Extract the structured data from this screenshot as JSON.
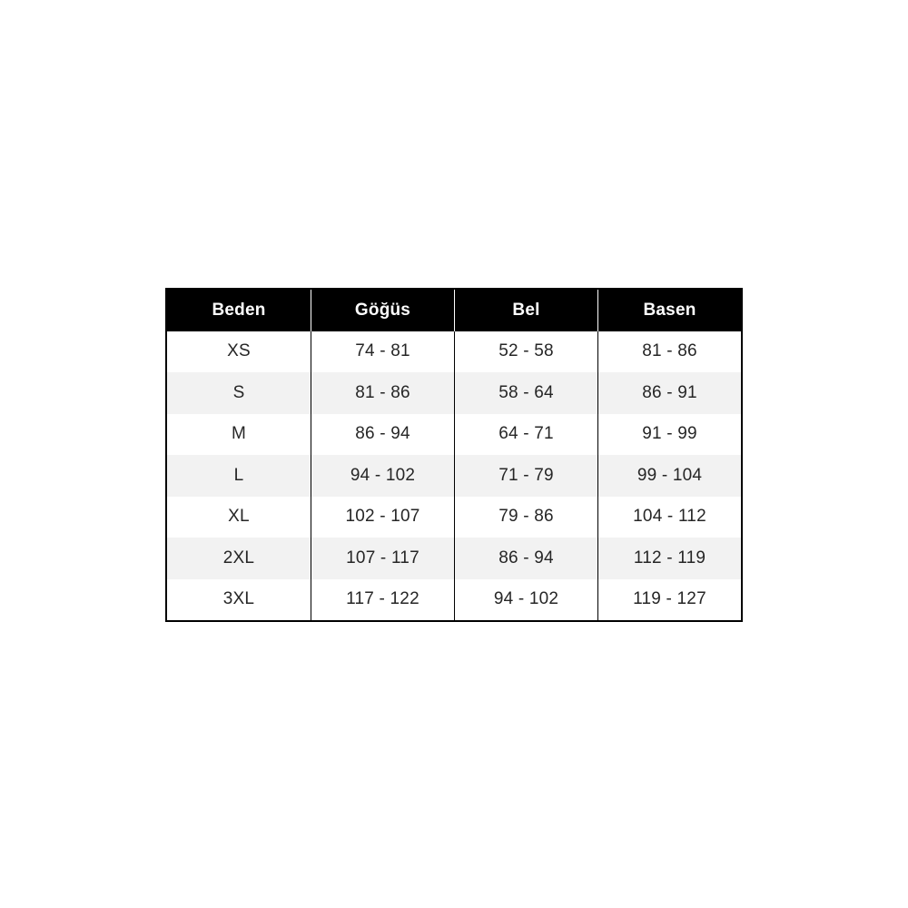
{
  "table": {
    "headers": [
      "Beden",
      "Göğüs",
      "Bel",
      "Basen"
    ],
    "rows": [
      {
        "size": "XS",
        "gogus": "74 - 81",
        "bel": "52 - 58",
        "basen": "81 - 86"
      },
      {
        "size": "S",
        "gogus": "81 - 86",
        "bel": "58 - 64",
        "basen": "86 - 91"
      },
      {
        "size": "M",
        "gogus": "86 - 94",
        "bel": "64 - 71",
        "basen": "91 - 99"
      },
      {
        "size": "L",
        "gogus": "94 - 102",
        "bel": "71 - 79",
        "basen": "99 - 104"
      },
      {
        "size": "XL",
        "gogus": "102 - 107",
        "bel": "79 - 86",
        "basen": "104 - 112"
      },
      {
        "size": "2XL",
        "gogus": "107 - 117",
        "bel": "86 - 94",
        "basen": "112 - 119"
      },
      {
        "size": "3XL",
        "gogus": "117 - 122",
        "bel": "94 - 102",
        "basen": "119 - 127"
      }
    ],
    "colors": {
      "header_bg": "#000000",
      "header_text": "#ffffff",
      "alt_row_bg": "#f2f2f2",
      "body_text": "#262626",
      "border": "#000000",
      "page_bg": "#ffffff"
    }
  },
  "chart_data": {
    "type": "table",
    "title": "",
    "columns": [
      "Beden",
      "Göğüs",
      "Bel",
      "Basen"
    ],
    "rows": [
      [
        "XS",
        "74 - 81",
        "52 - 58",
        "81 - 86"
      ],
      [
        "S",
        "81 - 86",
        "58 - 64",
        "86 - 91"
      ],
      [
        "M",
        "86 - 94",
        "64 - 71",
        "91 - 99"
      ],
      [
        "L",
        "94 - 102",
        "71 - 79",
        "99 - 104"
      ],
      [
        "XL",
        "102 - 107",
        "79 - 86",
        "104 - 112"
      ],
      [
        "2XL",
        "107 - 117",
        "86 - 94",
        "112 - 119"
      ],
      [
        "3XL",
        "117 - 122",
        "94 - 102",
        "119 - 127"
      ]
    ]
  }
}
